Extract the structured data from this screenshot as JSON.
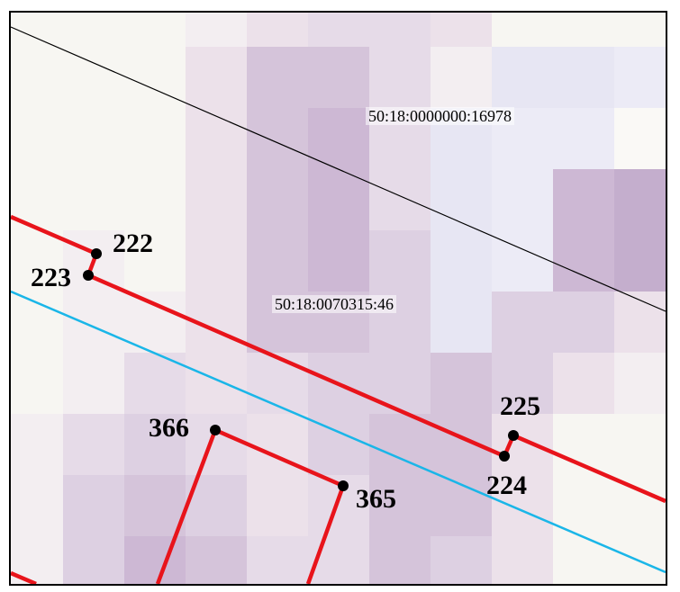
{
  "map": {
    "parcel_ids": {
      "north": "50:18:0000000:16978",
      "central": "50:18:0070315:46"
    },
    "points": {
      "p222": "222",
      "p223": "223",
      "p224": "224",
      "p225": "225",
      "p365": "365",
      "p366": "366"
    },
    "colors": {
      "boundary": "#e8141b",
      "cadastral_line": "#000000",
      "road_line": "#1ab6e8",
      "point_marker": "#000000",
      "raster_light": "#f7f6f2",
      "raster_dark": "#b79cc4"
    }
  }
}
